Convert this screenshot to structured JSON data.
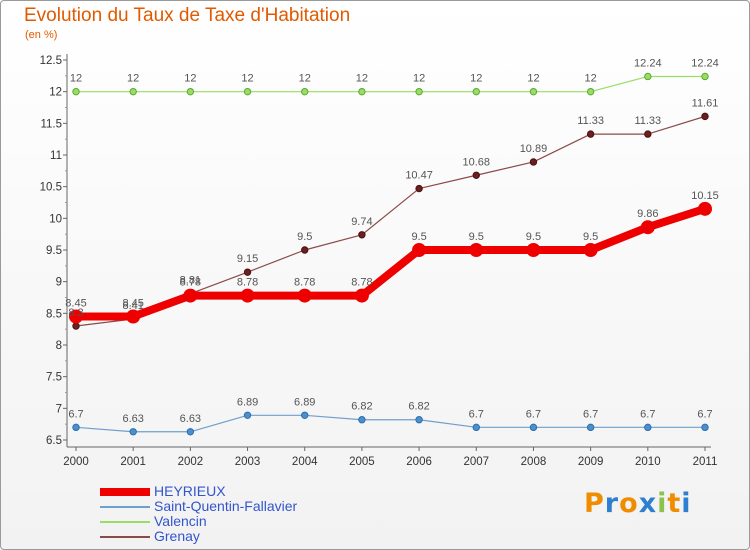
{
  "title": "Evolution du Taux de Taxe d'Habitation",
  "subtitle": "(en %)",
  "logo": {
    "text": "Proxiti",
    "letters": [
      "P",
      "r",
      "o",
      "x",
      "i",
      "t",
      "i"
    ],
    "colors": [
      "#f08c00",
      "#2f7fd0",
      "#f08c00",
      "#2f7fd0",
      "#8bc34a",
      "#f08c00",
      "#2f7fd0"
    ]
  },
  "chart_data": {
    "type": "line",
    "title": "Evolution du Taux de Taxe d'Habitation",
    "subtitle": "(en %)",
    "xlabel": "",
    "ylabel": "",
    "categories": [
      "2000",
      "2001",
      "2002",
      "2003",
      "2004",
      "2005",
      "2006",
      "2007",
      "2008",
      "2009",
      "2010",
      "2011"
    ],
    "ylim": [
      6.5,
      12.5
    ],
    "yticks": [
      "6.5",
      "7",
      "7.5",
      "8",
      "8.5",
      "9",
      "9.5",
      "10",
      "10.5",
      "11",
      "11.5",
      "12",
      "12.5"
    ],
    "grid": false,
    "legend_position": "bottom-left",
    "series": [
      {
        "name": "HEYRIEUX",
        "color": "#ee0000",
        "values": [
          8.45,
          8.45,
          8.78,
          8.78,
          8.78,
          8.78,
          9.5,
          9.5,
          9.5,
          9.5,
          9.86,
          10.15
        ],
        "labels": [
          "8.45",
          "8.45",
          "8.78",
          "8.78",
          "8.78",
          "8.78",
          "9.5",
          "9.5",
          "9.5",
          "9.5",
          "9.86",
          "10.15"
        ]
      },
      {
        "name": "Saint-Quentin-Fallavier",
        "color": "#6f9fcc",
        "values": [
          6.7,
          6.63,
          6.63,
          6.89,
          6.89,
          6.82,
          6.82,
          6.7,
          6.7,
          6.7,
          6.7,
          6.7
        ],
        "labels": [
          "6.7",
          "6.63",
          "6.63",
          "6.89",
          "6.89",
          "6.82",
          "6.82",
          "6.7",
          "6.7",
          "6.7",
          "6.7",
          "6.7"
        ]
      },
      {
        "name": "Valencin",
        "color": "#99dd66",
        "values": [
          12,
          12,
          12,
          12,
          12,
          12,
          12,
          12,
          12,
          12,
          12.24,
          12.24
        ],
        "labels": [
          "12",
          "12",
          "12",
          "12",
          "12",
          "12",
          "12",
          "12",
          "12",
          "12",
          "12.24",
          "12.24"
        ]
      },
      {
        "name": "Grenay",
        "color": "#8b4a4a",
        "values": [
          8.3,
          8.41,
          8.81,
          9.15,
          9.5,
          9.74,
          10.47,
          10.68,
          10.89,
          11.33,
          11.33,
          11.61
        ],
        "labels": [
          "8.3",
          "8.41",
          "8.81",
          "9.15",
          "9.5",
          "9.74",
          "10.47",
          "10.68",
          "10.89",
          "11.33",
          "11.33",
          "11.61"
        ]
      }
    ]
  }
}
